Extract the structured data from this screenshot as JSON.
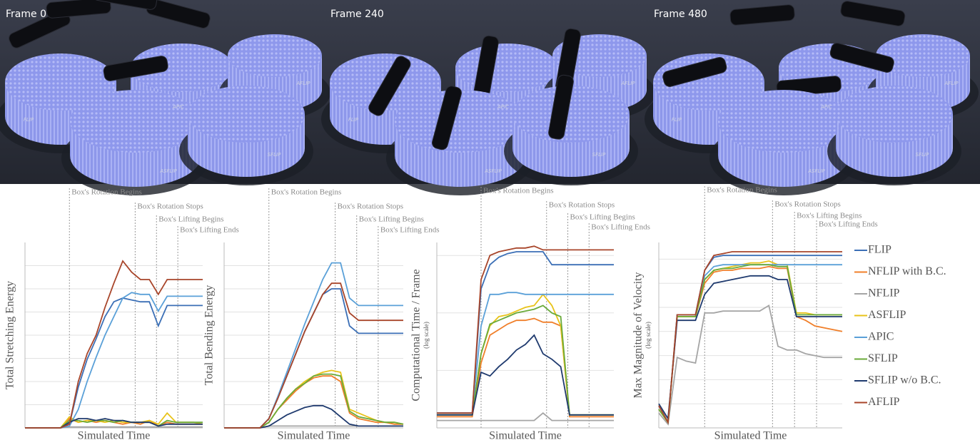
{
  "renders": [
    {
      "title": "Frame 0",
      "labels": [
        "FLIP",
        "APIC",
        "AFLIP",
        "ASFLIP",
        "SFLIP"
      ]
    },
    {
      "title": "Frame 240",
      "labels": [
        "FLIP",
        "APIC",
        "AFLIP",
        "ASFLIP",
        "SFLIP"
      ]
    },
    {
      "title": "Frame 480",
      "labels": [
        "FLIP",
        "APIC",
        "AFLIP",
        "ASFLIP",
        "SFLIP"
      ]
    }
  ],
  "legend": [
    {
      "name": "FLIP",
      "color": "#3b6fb6"
    },
    {
      "name": "NFLIP with B.C.",
      "color": "#f07f2a"
    },
    {
      "name": "NFLIP",
      "color": "#a5a5a5"
    },
    {
      "name": "ASFLIP",
      "color": "#e8c31a"
    },
    {
      "name": "APIC",
      "color": "#5aa0d8"
    },
    {
      "name": "SFLIP",
      "color": "#6aaa3a"
    },
    {
      "name": "SFLIP w/o B.C.",
      "color": "#1f3a6e"
    },
    {
      "name": "AFLIP",
      "color": "#a8452a"
    }
  ],
  "chart_data": [
    {
      "type": "line",
      "y_label": "Total Stretching Energy",
      "x_label": "Simulated Time",
      "xlim": [
        0,
        100
      ],
      "ylim": [
        0,
        100
      ],
      "ygrid": [
        12.5,
        25,
        37.5,
        50,
        62.5,
        75,
        87.5
      ],
      "events": [
        {
          "text": "Box's Rotation Begins",
          "x": 25
        },
        {
          "text": "Box's Rotation Stops",
          "x": 62
        },
        {
          "text": "Box's Lifting Begins",
          "x": 74
        },
        {
          "text": "Box's Lifting Ends",
          "x": 86
        }
      ],
      "x": [
        0,
        5,
        10,
        15,
        20,
        25,
        30,
        35,
        40,
        45,
        50,
        55,
        60,
        65,
        70,
        75,
        80,
        85,
        90,
        95,
        100
      ],
      "series": [
        {
          "values": [
            0,
            0,
            0,
            0,
            0,
            2,
            22,
            37,
            48,
            60,
            68,
            70,
            69,
            68,
            68,
            55,
            66,
            66,
            66,
            66,
            66
          ]
        },
        {
          "values": [
            0,
            0,
            0,
            0,
            0,
            5,
            3,
            4,
            3,
            4,
            3,
            2,
            3,
            2,
            4,
            1,
            3,
            2,
            2,
            2,
            2
          ]
        },
        {
          "values": [
            0,
            0,
            0,
            0,
            0,
            0.5,
            0.5,
            0.5,
            0.5,
            0.5,
            0.5,
            0.5,
            0.5,
            0.5,
            0.5,
            0.5,
            0.5,
            0.5,
            0.5,
            0.5,
            0.5
          ]
        },
        {
          "values": [
            0,
            0,
            0,
            0,
            0,
            6,
            3,
            4,
            4,
            3,
            4,
            3,
            3,
            3,
            4,
            2,
            8,
            3,
            3,
            3,
            2
          ]
        },
        {
          "values": [
            0,
            0,
            0,
            0,
            0,
            1,
            10,
            25,
            38,
            50,
            60,
            70,
            73,
            72,
            72,
            63,
            71,
            71,
            71,
            71,
            71
          ]
        },
        {
          "values": [
            0,
            0,
            0,
            0,
            0,
            4,
            4,
            3,
            4,
            4,
            3,
            4,
            3,
            3,
            3,
            1,
            4,
            3,
            3,
            3,
            3
          ]
        },
        {
          "values": [
            0,
            0,
            0,
            0,
            0,
            3,
            5,
            5,
            4,
            5,
            4,
            4,
            3,
            3,
            3,
            1,
            2,
            2,
            2,
            2,
            2
          ]
        },
        {
          "values": [
            0,
            0,
            0,
            0,
            0,
            2,
            25,
            40,
            50,
            65,
            78,
            90,
            84,
            80,
            80,
            72,
            80,
            80,
            80,
            80,
            80
          ]
        }
      ]
    },
    {
      "type": "line",
      "y_label": "Total Bending Energy",
      "x_label": "Simulated Time",
      "xlim": [
        0,
        100
      ],
      "ylim": [
        0,
        100
      ],
      "ygrid": [
        12.5,
        25,
        37.5,
        50,
        62.5,
        75,
        87.5
      ],
      "events": [
        {
          "text": "Box's Rotation Begins",
          "x": 25
        },
        {
          "text": "Box's Rotation Stops",
          "x": 62
        },
        {
          "text": "Box's Lifting Begins",
          "x": 74
        },
        {
          "text": "Box's Lifting Ends",
          "x": 86
        }
      ],
      "x": [
        0,
        5,
        10,
        15,
        20,
        25,
        30,
        35,
        40,
        45,
        50,
        55,
        60,
        65,
        70,
        75,
        80,
        85,
        90,
        95,
        100
      ],
      "series": [
        {
          "values": [
            0,
            0,
            0,
            0,
            0,
            5,
            16,
            28,
            40,
            52,
            62,
            72,
            75,
            75,
            55,
            51,
            51,
            51,
            51,
            51,
            51
          ]
        },
        {
          "values": [
            0,
            0,
            0,
            0,
            0,
            3,
            10,
            15,
            20,
            24,
            27,
            28,
            28,
            25,
            8,
            5,
            4,
            3,
            3,
            2,
            2
          ]
        },
        {
          "values": [
            0,
            0,
            0,
            0,
            0,
            1,
            1,
            1,
            1,
            1,
            1,
            1,
            1,
            1,
            1,
            1,
            1,
            1,
            1,
            1,
            1
          ]
        },
        {
          "values": [
            0,
            0,
            0,
            0,
            0,
            3,
            10,
            16,
            21,
            25,
            28,
            30,
            31,
            30,
            10,
            8,
            6,
            4,
            3,
            3,
            2
          ]
        },
        {
          "values": [
            0,
            0,
            0,
            0,
            0,
            5,
            17,
            30,
            43,
            56,
            68,
            80,
            89,
            89,
            70,
            66,
            66,
            66,
            66,
            66,
            66
          ]
        },
        {
          "values": [
            0,
            0,
            0,
            0,
            0,
            3,
            10,
            16,
            21,
            24,
            28,
            29,
            29,
            28,
            9,
            6,
            5,
            4,
            3,
            3,
            2
          ]
        },
        {
          "values": [
            0,
            0,
            0,
            0,
            0,
            1,
            4,
            7,
            9,
            11,
            12,
            12,
            10,
            6,
            2,
            1,
            1,
            1,
            1,
            1,
            1
          ]
        },
        {
          "values": [
            0,
            0,
            0,
            0,
            0,
            5,
            16,
            28,
            40,
            52,
            62,
            72,
            78,
            78,
            62,
            58,
            58,
            58,
            58,
            58,
            58
          ]
        }
      ]
    },
    {
      "type": "line",
      "y_label": "Computational Time / Frame",
      "y_sublabel": "(log scale)",
      "x_label": "Simulated Time",
      "xlim": [
        0,
        100
      ],
      "ylim": [
        0,
        100
      ],
      "ygrid": [
        31,
        62,
        93
      ],
      "events": [
        {
          "text": "Box's Rotation Begins",
          "x": 25
        },
        {
          "text": "Box's Rotation Stops",
          "x": 62
        },
        {
          "text": "Box's Lifting Begins",
          "x": 74
        },
        {
          "text": "Box's Lifting Ends",
          "x": 86
        }
      ],
      "x": [
        0,
        5,
        10,
        15,
        20,
        25,
        30,
        35,
        40,
        45,
        50,
        55,
        60,
        65,
        70,
        75,
        80,
        85,
        90,
        95,
        100
      ],
      "series": [
        {
          "values": [
            8,
            8,
            8,
            8,
            8,
            75,
            88,
            92,
            94,
            95,
            95,
            95,
            95,
            88,
            88,
            88,
            88,
            88,
            88,
            88,
            88
          ]
        },
        {
          "values": [
            6,
            6,
            6,
            6,
            6,
            35,
            50,
            53,
            56,
            58,
            58,
            59,
            57,
            57,
            55,
            6,
            6,
            6,
            6,
            6,
            6
          ]
        },
        {
          "values": [
            4,
            4,
            4,
            4,
            4,
            4,
            4,
            4,
            4,
            4,
            4,
            4,
            8,
            4,
            4,
            4,
            4,
            4,
            4,
            4,
            4
          ]
        },
        {
          "values": [
            7,
            7,
            7,
            7,
            7,
            40,
            55,
            60,
            61,
            63,
            65,
            66,
            72,
            66,
            55,
            7,
            7,
            7,
            7,
            7,
            7
          ]
        },
        {
          "values": [
            8,
            8,
            8,
            8,
            8,
            55,
            72,
            72,
            73,
            73,
            72,
            72,
            72,
            72,
            72,
            72,
            72,
            72,
            72,
            72,
            72
          ]
        },
        {
          "values": [
            7,
            7,
            7,
            7,
            7,
            40,
            56,
            58,
            60,
            62,
            63,
            64,
            66,
            62,
            60,
            7,
            7,
            7,
            7,
            7,
            7
          ]
        },
        {
          "values": [
            7,
            7,
            7,
            7,
            7,
            30,
            28,
            33,
            37,
            42,
            45,
            50,
            40,
            37,
            33,
            7,
            7,
            7,
            7,
            7,
            7
          ]
        },
        {
          "values": [
            8,
            8,
            8,
            8,
            8,
            80,
            93,
            95,
            96,
            97,
            97,
            98,
            96,
            96,
            96,
            96,
            96,
            96,
            96,
            96,
            96
          ]
        }
      ]
    },
    {
      "type": "line",
      "y_label": "Max Magnitude of Velocity",
      "y_sublabel": "(log scale)",
      "x_label": "Simulated Time",
      "xlim": [
        0,
        100
      ],
      "ylim": [
        0,
        100
      ],
      "ygrid": [
        13,
        26,
        39,
        52,
        65,
        78,
        91
      ],
      "events": [
        {
          "text": "Box's Rotation Begins",
          "x": 25
        },
        {
          "text": "Box's Rotation Stops",
          "x": 62
        },
        {
          "text": "Box's Lifting Begins",
          "x": 74
        },
        {
          "text": "Box's Lifting Ends",
          "x": 86
        }
      ],
      "x": [
        0,
        5,
        10,
        15,
        20,
        25,
        30,
        35,
        40,
        45,
        50,
        55,
        60,
        65,
        70,
        75,
        80,
        85,
        90,
        95,
        100
      ],
      "series": [
        {
          "values": [
            12,
            3,
            61,
            61,
            61,
            85,
            92,
            93,
            93,
            93,
            93,
            93,
            93,
            93,
            93,
            93,
            93,
            93,
            93,
            93,
            93
          ]
        },
        {
          "values": [
            10,
            3,
            60,
            60,
            60,
            78,
            84,
            85,
            85,
            86,
            86,
            86,
            87,
            86,
            86,
            60,
            58,
            55,
            54,
            53,
            52
          ]
        },
        {
          "values": [
            8,
            2,
            38,
            36,
            35,
            62,
            62,
            63,
            63,
            63,
            63,
            63,
            66,
            44,
            42,
            42,
            40,
            39,
            38,
            38,
            38
          ]
        },
        {
          "values": [
            10,
            3,
            60,
            60,
            60,
            80,
            85,
            86,
            87,
            88,
            89,
            89,
            90,
            88,
            88,
            62,
            62,
            61,
            61,
            61,
            61
          ]
        },
        {
          "values": [
            12,
            3,
            61,
            61,
            61,
            82,
            87,
            88,
            88,
            88,
            88,
            88,
            88,
            88,
            88,
            88,
            88,
            88,
            88,
            88,
            88
          ]
        },
        {
          "values": [
            10,
            3,
            60,
            60,
            60,
            80,
            85,
            86,
            86,
            87,
            88,
            88,
            88,
            87,
            87,
            61,
            61,
            61,
            61,
            61,
            61
          ]
        },
        {
          "values": [
            13,
            5,
            58,
            58,
            58,
            72,
            78,
            79,
            80,
            81,
            82,
            82,
            82,
            80,
            80,
            60,
            60,
            60,
            60,
            60,
            60
          ]
        },
        {
          "values": [
            12,
            3,
            61,
            61,
            61,
            85,
            93,
            94,
            95,
            95,
            95,
            95,
            95,
            95,
            95,
            95,
            95,
            95,
            95,
            95,
            95
          ]
        }
      ]
    }
  ]
}
